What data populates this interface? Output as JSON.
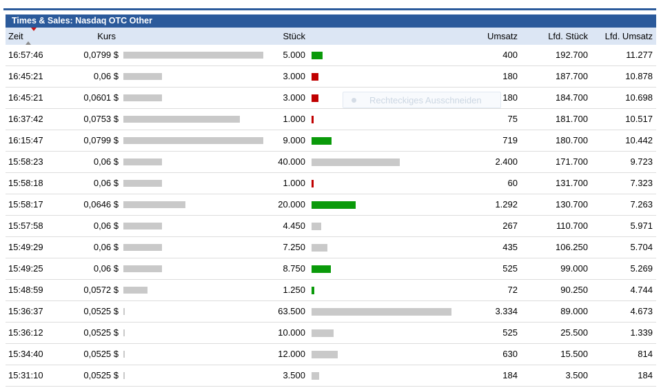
{
  "window": {
    "title": "Times & Sales: Nasdaq OTC Other"
  },
  "table": {
    "headers": {
      "zeit": "Zeit",
      "kurs": "Kurs",
      "stueck": "Stück",
      "umsatz": "Umsatz",
      "lfd_stueck": "Lfd. Stück",
      "lfd_umsatz": "Lfd. Umsatz"
    },
    "sort": {
      "column": "Zeit",
      "direction": "desc",
      "icons": [
        "sort-asc-icon",
        "sort-desc-icon"
      ]
    },
    "rows": [
      {
        "zeit": "16:57:46",
        "kurs": "0,0799 $",
        "kurs_value": 0.0799,
        "stueck": "5.000",
        "stueck_value": 5000,
        "direction": "up",
        "umsatz": "400",
        "lfd_stueck": "192.700",
        "lfd_umsatz": "11.277"
      },
      {
        "zeit": "16:45:21",
        "kurs": "0,06 $",
        "kurs_value": 0.06,
        "stueck": "3.000",
        "stueck_value": 3000,
        "direction": "down",
        "umsatz": "180",
        "lfd_stueck": "187.700",
        "lfd_umsatz": "10.878"
      },
      {
        "zeit": "16:45:21",
        "kurs": "0,0601 $",
        "kurs_value": 0.0601,
        "stueck": "3.000",
        "stueck_value": 3000,
        "direction": "down",
        "umsatz": "180",
        "lfd_stueck": "184.700",
        "lfd_umsatz": "10.698"
      },
      {
        "zeit": "16:37:42",
        "kurs": "0,0753 $",
        "kurs_value": 0.0753,
        "stueck": "1.000",
        "stueck_value": 1000,
        "direction": "down",
        "umsatz": "75",
        "lfd_stueck": "181.700",
        "lfd_umsatz": "10.517"
      },
      {
        "zeit": "16:15:47",
        "kurs": "0,0799 $",
        "kurs_value": 0.0799,
        "stueck": "9.000",
        "stueck_value": 9000,
        "direction": "up",
        "umsatz": "719",
        "lfd_stueck": "180.700",
        "lfd_umsatz": "10.442"
      },
      {
        "zeit": "15:58:23",
        "kurs": "0,06 $",
        "kurs_value": 0.06,
        "stueck": "40.000",
        "stueck_value": 40000,
        "direction": "neutral",
        "umsatz": "2.400",
        "lfd_stueck": "171.700",
        "lfd_umsatz": "9.723"
      },
      {
        "zeit": "15:58:18",
        "kurs": "0,06 $",
        "kurs_value": 0.06,
        "stueck": "1.000",
        "stueck_value": 1000,
        "direction": "down",
        "umsatz": "60",
        "lfd_stueck": "131.700",
        "lfd_umsatz": "7.323"
      },
      {
        "zeit": "15:58:17",
        "kurs": "0,0646 $",
        "kurs_value": 0.0646,
        "stueck": "20.000",
        "stueck_value": 20000,
        "direction": "up",
        "umsatz": "1.292",
        "lfd_stueck": "130.700",
        "lfd_umsatz": "7.263"
      },
      {
        "zeit": "15:57:58",
        "kurs": "0,06 $",
        "kurs_value": 0.06,
        "stueck": "4.450",
        "stueck_value": 4450,
        "direction": "neutral",
        "umsatz": "267",
        "lfd_stueck": "110.700",
        "lfd_umsatz": "5.971"
      },
      {
        "zeit": "15:49:29",
        "kurs": "0,06 $",
        "kurs_value": 0.06,
        "stueck": "7.250",
        "stueck_value": 7250,
        "direction": "neutral",
        "umsatz": "435",
        "lfd_stueck": "106.250",
        "lfd_umsatz": "5.704"
      },
      {
        "zeit": "15:49:25",
        "kurs": "0,06 $",
        "kurs_value": 0.06,
        "stueck": "8.750",
        "stueck_value": 8750,
        "direction": "up",
        "umsatz": "525",
        "lfd_stueck": "99.000",
        "lfd_umsatz": "5.269"
      },
      {
        "zeit": "15:48:59",
        "kurs": "0,0572 $",
        "kurs_value": 0.0572,
        "stueck": "1.250",
        "stueck_value": 1250,
        "direction": "up",
        "umsatz": "72",
        "lfd_stueck": "90.250",
        "lfd_umsatz": "4.744"
      },
      {
        "zeit": "15:36:37",
        "kurs": "0,0525 $",
        "kurs_value": 0.0525,
        "stueck": "63.500",
        "stueck_value": 63500,
        "direction": "neutral",
        "umsatz": "3.334",
        "lfd_stueck": "89.000",
        "lfd_umsatz": "4.673"
      },
      {
        "zeit": "15:36:12",
        "kurs": "0,0525 $",
        "kurs_value": 0.0525,
        "stueck": "10.000",
        "stueck_value": 10000,
        "direction": "neutral",
        "umsatz": "525",
        "lfd_stueck": "25.500",
        "lfd_umsatz": "1.339"
      },
      {
        "zeit": "15:34:40",
        "kurs": "0,0525 $",
        "kurs_value": 0.0525,
        "stueck": "12.000",
        "stueck_value": 12000,
        "direction": "neutral",
        "umsatz": "630",
        "lfd_stueck": "15.500",
        "lfd_umsatz": "814"
      },
      {
        "zeit": "15:31:10",
        "kurs": "0,0525 $",
        "kurs_value": 0.0525,
        "stueck": "3.500",
        "stueck_value": 3500,
        "direction": "neutral",
        "umsatz": "184",
        "lfd_stueck": "3.500",
        "lfd_umsatz": "184"
      }
    ]
  },
  "overlay": {
    "label": "Rechteckiges Ausschneiden",
    "icon": "record-dot-icon"
  },
  "colors": {
    "accent_blue": "#2b5a9b",
    "header_bg": "#dce6f4",
    "bar_gray": "#c9c9c9",
    "up_green": "#0a9a0a",
    "down_red": "#c00000",
    "sort_up_gray": "#8a8a8a",
    "sort_down_red": "#cc1111"
  }
}
